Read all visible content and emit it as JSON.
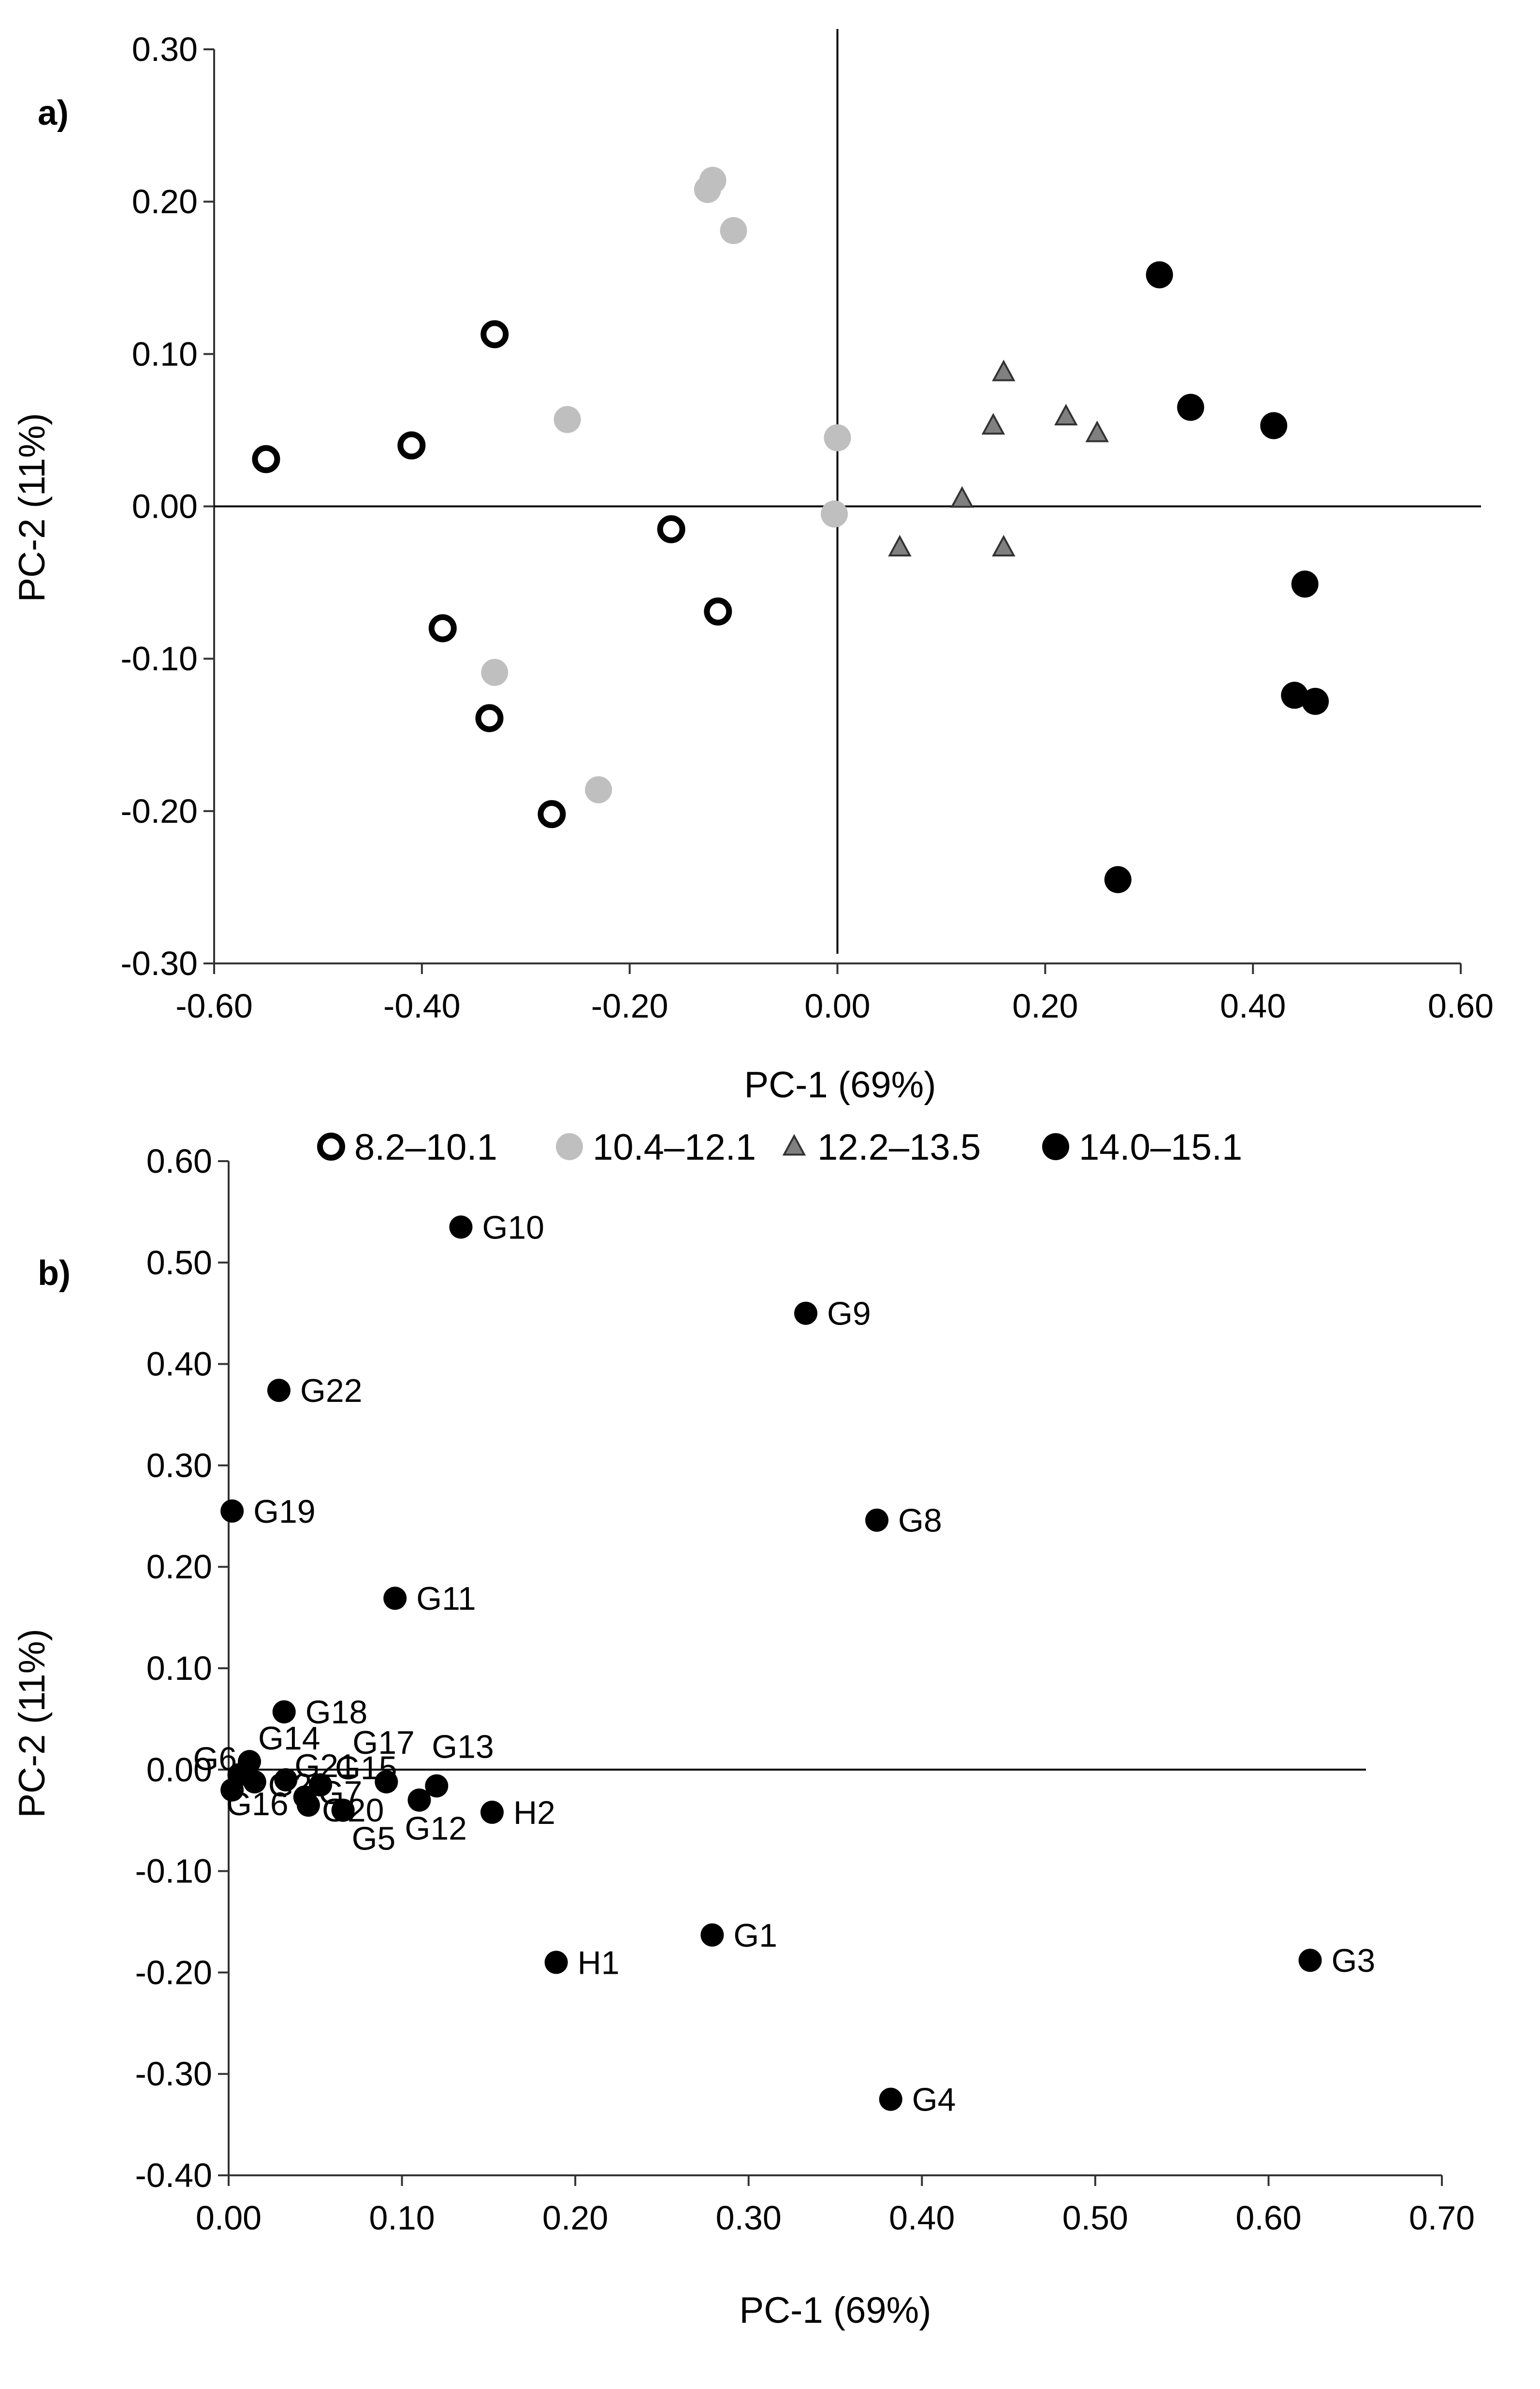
{
  "chart_data": [
    {
      "type": "scatter",
      "panel_label": "a)",
      "xlabel": "PC-1 (69%)",
      "ylabel": "PC-2 (11%)",
      "xlim": [
        -0.6,
        0.6
      ],
      "ylim": [
        -0.3,
        0.3
      ],
      "x_ticks": [
        -0.6,
        -0.4,
        -0.2,
        0.0,
        0.2,
        0.4,
        0.6
      ],
      "y_ticks": [
        -0.3,
        -0.2,
        -0.1,
        0.0,
        0.1,
        0.2,
        0.3
      ],
      "x_tick_labels": [
        "-0.60",
        "-0.40",
        "-0.20",
        "0.00",
        "0.20",
        "0.40",
        "0.60"
      ],
      "y_tick_labels": [
        "-0.30",
        "-0.20",
        "-0.10",
        "0.00",
        "0.10",
        "0.20",
        "0.30"
      ],
      "grid": false,
      "legend_position": "bottom",
      "series": [
        {
          "name": "8.2–10.1",
          "marker": "circle-open",
          "color": "#000000",
          "points": [
            [
              -0.55,
              0.031
            ],
            [
              -0.41,
              0.04
            ],
            [
              -0.33,
              0.113
            ],
            [
              -0.16,
              -0.015
            ],
            [
              -0.115,
              -0.069
            ],
            [
              -0.38,
              -0.08
            ],
            [
              -0.335,
              -0.139
            ],
            [
              -0.275,
              -0.202
            ]
          ]
        },
        {
          "name": "10.4–12.1",
          "marker": "circle",
          "color": "#bfbfbf",
          "points": [
            [
              -0.12,
              0.214
            ],
            [
              -0.125,
              0.208
            ],
            [
              -0.1,
              0.181
            ],
            [
              -0.26,
              0.057
            ],
            [
              0.0,
              0.045
            ],
            [
              -0.003,
              -0.005
            ],
            [
              -0.33,
              -0.109
            ],
            [
              -0.23,
              -0.186
            ]
          ]
        },
        {
          "name": "12.2–13.5",
          "marker": "triangle",
          "color": "#808080",
          "points": [
            [
              0.16,
              0.088
            ],
            [
              0.15,
              0.053
            ],
            [
              0.22,
              0.059
            ],
            [
              0.25,
              0.048
            ],
            [
              0.12,
              0.005
            ],
            [
              0.06,
              -0.027
            ],
            [
              0.16,
              -0.027
            ]
          ]
        },
        {
          "name": "14.0–15.1",
          "marker": "circle",
          "color": "#000000",
          "points": [
            [
              0.31,
              0.152
            ],
            [
              0.34,
              0.065
            ],
            [
              0.42,
              0.053
            ],
            [
              0.45,
              -0.051
            ],
            [
              0.44,
              -0.124
            ],
            [
              0.46,
              -0.128
            ],
            [
              0.27,
              -0.245
            ]
          ]
        }
      ]
    },
    {
      "type": "scatter",
      "panel_label": "b)",
      "xlabel": "PC-1 (69%)",
      "ylabel": "PC-2 (11%)",
      "xlim": [
        0.0,
        0.7
      ],
      "ylim": [
        -0.4,
        0.6
      ],
      "x_ticks": [
        0.0,
        0.1,
        0.2,
        0.3,
        0.4,
        0.5,
        0.6,
        0.7
      ],
      "y_ticks": [
        -0.4,
        -0.3,
        -0.2,
        -0.1,
        0.0,
        0.1,
        0.2,
        0.3,
        0.4,
        0.5,
        0.6
      ],
      "x_tick_labels": [
        "0.00",
        "0.10",
        "0.20",
        "0.30",
        "0.40",
        "0.50",
        "0.60",
        "0.70"
      ],
      "y_tick_labels": [
        "-0.40",
        "-0.30",
        "-0.20",
        "-0.10",
        "0.00",
        "0.10",
        "0.20",
        "0.30",
        "0.40",
        "0.50",
        "0.60"
      ],
      "grid": false,
      "points": [
        {
          "label": "G10",
          "x": 0.134,
          "y": 0.535
        },
        {
          "label": "G9",
          "x": 0.333,
          "y": 0.45
        },
        {
          "label": "G22",
          "x": 0.029,
          "y": 0.374
        },
        {
          "label": "G19",
          "x": 0.002,
          "y": 0.255
        },
        {
          "label": "G8",
          "x": 0.374,
          "y": 0.246
        },
        {
          "label": "G11",
          "x": 0.096,
          "y": 0.169
        },
        {
          "label": "G18",
          "x": 0.032,
          "y": 0.057
        },
        {
          "label": "G14",
          "x": 0.012,
          "y": 0.008
        },
        {
          "label": "G6",
          "x": 0.006,
          "y": -0.005
        },
        {
          "label": "G16",
          "x": 0.002,
          "y": -0.02
        },
        {
          "label": "G2",
          "x": 0.015,
          "y": -0.012
        },
        {
          "label": "G21",
          "x": 0.033,
          "y": -0.01
        },
        {
          "label": "G7",
          "x": 0.044,
          "y": -0.027
        },
        {
          "label": "G20",
          "x": 0.046,
          "y": -0.035
        },
        {
          "label": "G15",
          "x": 0.053,
          "y": -0.015
        },
        {
          "label": "G5",
          "x": 0.066,
          "y": -0.04
        },
        {
          "label": "G17",
          "x": 0.091,
          "y": -0.012
        },
        {
          "label": "G13",
          "x": 0.12,
          "y": -0.016
        },
        {
          "label": "G12",
          "x": 0.11,
          "y": -0.03
        },
        {
          "label": "H2",
          "x": 0.152,
          "y": -0.042
        },
        {
          "label": "G1",
          "x": 0.279,
          "y": -0.163
        },
        {
          "label": "H1",
          "x": 0.189,
          "y": -0.19
        },
        {
          "label": "G3",
          "x": 0.624,
          "y": -0.188
        },
        {
          "label": "G4",
          "x": 0.382,
          "y": -0.325
        }
      ]
    }
  ]
}
